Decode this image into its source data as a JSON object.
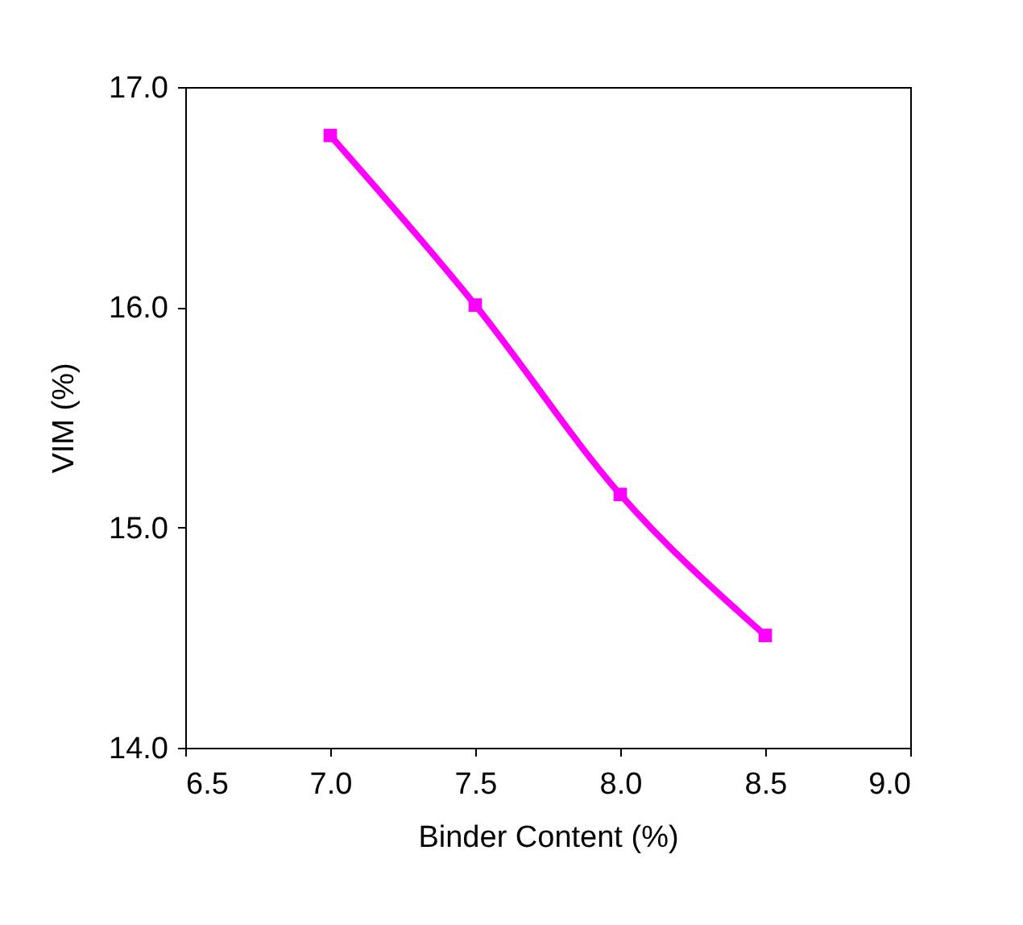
{
  "chart_data": {
    "type": "line",
    "xlabel": "Binder Content (%)",
    "ylabel": "VIM (%)",
    "x": [
      7.0,
      7.5,
      8.0,
      8.5
    ],
    "series": [
      {
        "color": "#ff00ff",
        "values": [
          16.78,
          16.01,
          15.15,
          14.51
        ]
      }
    ],
    "xlim": [
      6.5,
      9.0
    ],
    "xticks": [
      {
        "value": 6.5,
        "label": "6.5"
      },
      {
        "value": 7.0,
        "label": "7.0"
      },
      {
        "value": 7.5,
        "label": "7.5"
      },
      {
        "value": 8.0,
        "label": "8.0"
      },
      {
        "value": 8.5,
        "label": "8.5"
      },
      {
        "value": 9.0,
        "label": "9.0"
      }
    ],
    "ylim": [
      14.0,
      17.0
    ],
    "yticks": [
      {
        "value": 14.0,
        "label": "14.0"
      },
      {
        "value": 15.0,
        "label": "15.0"
      },
      {
        "value": 16.0,
        "label": "16.0"
      },
      {
        "value": 17.0,
        "label": "17.0"
      }
    ],
    "grid": false,
    "marker": "square",
    "line_style": "solid"
  }
}
